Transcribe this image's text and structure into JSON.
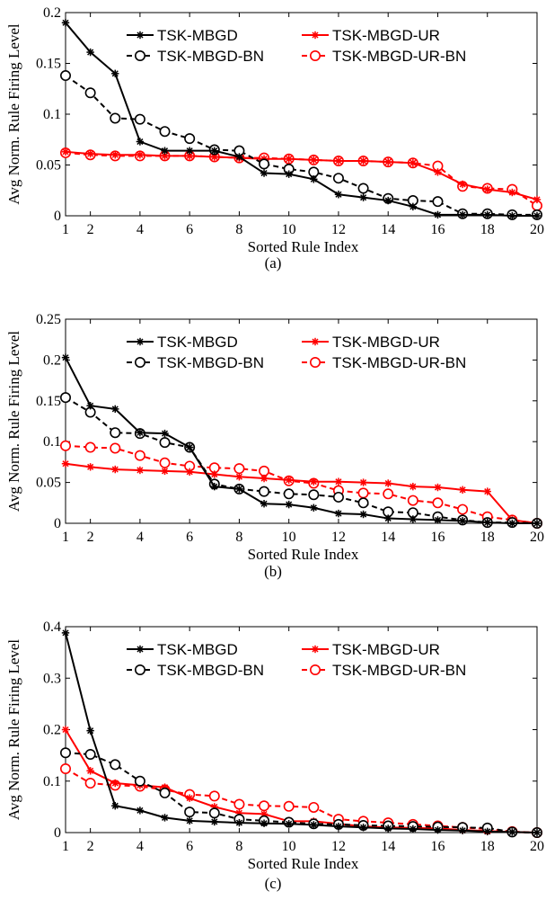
{
  "colors": {
    "black": "#000000",
    "red": "#ff0000"
  },
  "chart_data": [
    {
      "type": "line",
      "caption": "(a)",
      "xlabel": "Sorted Rule Index",
      "ylabel": "Avg Norm. Rule Firing Level",
      "xlim": [
        1,
        20
      ],
      "ylim": [
        0,
        0.2
      ],
      "xticks": [
        1,
        2,
        4,
        6,
        8,
        10,
        12,
        14,
        16,
        18,
        20
      ],
      "yticks": [
        0,
        0.05,
        0.1,
        0.15,
        0.2
      ],
      "ytick_labels": [
        "0",
        "0.05",
        "0.1",
        "0.15",
        "0.2"
      ],
      "legend_position": "top",
      "x": [
        1,
        2,
        3,
        4,
        5,
        6,
        7,
        8,
        9,
        10,
        11,
        12,
        13,
        14,
        15,
        16,
        17,
        18,
        19,
        20
      ],
      "series": [
        {
          "name": "TSK-MBGD",
          "color": "black",
          "style": "solid",
          "marker": "asterisk",
          "values": [
            0.19,
            0.161,
            0.14,
            0.073,
            0.064,
            0.064,
            0.064,
            0.058,
            0.042,
            0.041,
            0.036,
            0.021,
            0.018,
            0.015,
            0.009,
            0.001,
            0.001,
            0.001,
            0.0,
            0.0
          ]
        },
        {
          "name": "TSK-MBGD-UR",
          "color": "red",
          "style": "solid",
          "marker": "asterisk",
          "values": [
            0.063,
            0.061,
            0.06,
            0.06,
            0.059,
            0.059,
            0.058,
            0.057,
            0.056,
            0.056,
            0.055,
            0.054,
            0.054,
            0.053,
            0.052,
            0.043,
            0.031,
            0.026,
            0.023,
            0.016
          ]
        },
        {
          "name": "TSK-MBGD-BN",
          "color": "black",
          "style": "dashed",
          "marker": "circle",
          "values": [
            0.138,
            0.121,
            0.096,
            0.095,
            0.083,
            0.076,
            0.065,
            0.064,
            0.051,
            0.046,
            0.043,
            0.037,
            0.027,
            0.017,
            0.015,
            0.014,
            0.002,
            0.002,
            0.001,
            0.001
          ]
        },
        {
          "name": "TSK-MBGD-UR-BN",
          "color": "red",
          "style": "dashed",
          "marker": "circle",
          "values": [
            0.062,
            0.06,
            0.059,
            0.059,
            0.059,
            0.059,
            0.058,
            0.057,
            0.057,
            0.056,
            0.055,
            0.054,
            0.054,
            0.053,
            0.052,
            0.049,
            0.029,
            0.027,
            0.026,
            0.01
          ]
        }
      ]
    },
    {
      "type": "line",
      "caption": "(b)",
      "xlabel": "Sorted Rule Index",
      "ylabel": "Avg Norm. Rule Firing Level",
      "xlim": [
        1,
        20
      ],
      "ylim": [
        0,
        0.25
      ],
      "xticks": [
        1,
        2,
        4,
        6,
        8,
        10,
        12,
        14,
        16,
        18,
        20
      ],
      "yticks": [
        0,
        0.05,
        0.1,
        0.15,
        0.2,
        0.25
      ],
      "ytick_labels": [
        "0",
        "0.05",
        "0.1",
        "0.15",
        "0.2",
        "0.25"
      ],
      "legend_position": "top",
      "x": [
        1,
        2,
        3,
        4,
        5,
        6,
        7,
        8,
        9,
        10,
        11,
        12,
        13,
        14,
        15,
        16,
        17,
        18,
        19,
        20
      ],
      "series": [
        {
          "name": "TSK-MBGD",
          "color": "black",
          "style": "solid",
          "marker": "asterisk",
          "values": [
            0.203,
            0.144,
            0.14,
            0.111,
            0.11,
            0.093,
            0.045,
            0.042,
            0.024,
            0.023,
            0.019,
            0.012,
            0.011,
            0.006,
            0.005,
            0.004,
            0.003,
            0.001,
            0.0,
            0.0
          ]
        },
        {
          "name": "TSK-MBGD-UR",
          "color": "red",
          "style": "solid",
          "marker": "asterisk",
          "values": [
            0.073,
            0.069,
            0.066,
            0.065,
            0.064,
            0.063,
            0.06,
            0.057,
            0.055,
            0.053,
            0.051,
            0.051,
            0.05,
            0.049,
            0.045,
            0.044,
            0.041,
            0.039,
            0.004,
            0.0
          ]
        },
        {
          "name": "TSK-MBGD-BN",
          "color": "black",
          "style": "dashed",
          "marker": "circle",
          "values": [
            0.154,
            0.136,
            0.111,
            0.11,
            0.099,
            0.093,
            0.048,
            0.042,
            0.039,
            0.036,
            0.035,
            0.032,
            0.025,
            0.014,
            0.013,
            0.008,
            0.004,
            0.001,
            0.001,
            0.0
          ]
        },
        {
          "name": "TSK-MBGD-UR-BN",
          "color": "red",
          "style": "dashed",
          "marker": "circle",
          "values": [
            0.095,
            0.093,
            0.092,
            0.083,
            0.074,
            0.07,
            0.068,
            0.067,
            0.064,
            0.052,
            0.049,
            0.04,
            0.037,
            0.036,
            0.028,
            0.025,
            0.017,
            0.008,
            0.004,
            0.0
          ]
        }
      ]
    },
    {
      "type": "line",
      "caption": "(c)",
      "xlabel": "Sorted Rule Index",
      "ylabel": "Avg Norm. Rule Firing Level",
      "xlim": [
        1,
        20
      ],
      "ylim": [
        0,
        0.4
      ],
      "xticks": [
        1,
        2,
        4,
        6,
        8,
        10,
        12,
        14,
        16,
        18,
        20
      ],
      "yticks": [
        0,
        0.1,
        0.2,
        0.3,
        0.4
      ],
      "ytick_labels": [
        "0",
        "0.1",
        "0.2",
        "0.3",
        "0.4"
      ],
      "legend_position": "top",
      "x": [
        1,
        2,
        3,
        4,
        5,
        6,
        7,
        8,
        9,
        10,
        11,
        12,
        13,
        14,
        15,
        16,
        17,
        18,
        19,
        20
      ],
      "series": [
        {
          "name": "TSK-MBGD",
          "color": "black",
          "style": "solid",
          "marker": "asterisk",
          "values": [
            0.388,
            0.198,
            0.052,
            0.043,
            0.029,
            0.023,
            0.021,
            0.019,
            0.018,
            0.017,
            0.015,
            0.012,
            0.01,
            0.008,
            0.007,
            0.005,
            0.004,
            0.002,
            0.001,
            0.0
          ]
        },
        {
          "name": "TSK-MBGD-UR",
          "color": "red",
          "style": "solid",
          "marker": "asterisk",
          "values": [
            0.2,
            0.12,
            0.096,
            0.092,
            0.088,
            0.067,
            0.05,
            0.038,
            0.036,
            0.022,
            0.022,
            0.017,
            0.012,
            0.01,
            0.009,
            0.008,
            0.005,
            0.003,
            0.001,
            0.0
          ]
        },
        {
          "name": "TSK-MBGD-BN",
          "color": "black",
          "style": "dashed",
          "marker": "circle",
          "values": [
            0.155,
            0.152,
            0.132,
            0.1,
            0.077,
            0.04,
            0.038,
            0.026,
            0.023,
            0.02,
            0.017,
            0.016,
            0.014,
            0.013,
            0.012,
            0.011,
            0.01,
            0.009,
            0.001,
            0.0
          ]
        },
        {
          "name": "TSK-MBGD-UR-BN",
          "color": "red",
          "style": "dashed",
          "marker": "circle",
          "values": [
            0.124,
            0.096,
            0.092,
            0.09,
            0.083,
            0.074,
            0.071,
            0.055,
            0.052,
            0.051,
            0.049,
            0.026,
            0.022,
            0.019,
            0.016,
            0.013,
            0.01,
            0.007,
            0.002,
            0.0
          ]
        }
      ]
    }
  ]
}
